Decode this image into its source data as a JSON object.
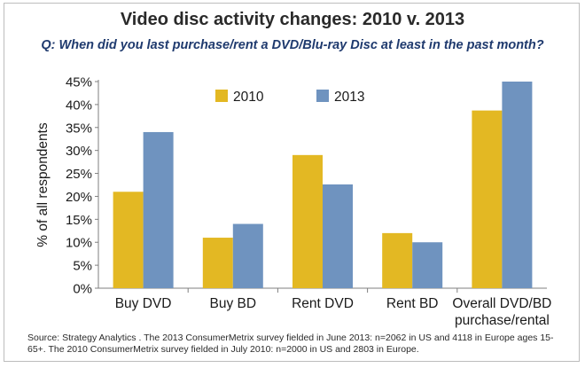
{
  "title": "Video disc activity changes: 2010 v. 2013",
  "subtitle": "Q: When did you last purchase/rent a DVD/Blu-ray Disc at least in the past month?",
  "source": "Source: Strategy Analytics . The 2013 ConsumerMetrix survey fielded in June 2013: n=2062 in US and 4118 in Europe ages 15-65+. The 2010 ConsumerMetrix survey fielded in July 2010: n=2000 in US and 2803 in Europe.",
  "colors": {
    "series_2010": "#e3b823",
    "series_2013": "#6f93bf",
    "axis": "#7f7f7f",
    "text": "#1a1a1a"
  },
  "chart_data": {
    "type": "bar",
    "categories": [
      [
        "Buy DVD"
      ],
      [
        "Buy BD"
      ],
      [
        "Rent DVD"
      ],
      [
        "Rent BD"
      ],
      [
        "Overall DVD/BD",
        "purchase/rental"
      ]
    ],
    "series": [
      {
        "name": "2010",
        "values": [
          21,
          11,
          29,
          12,
          38.7
        ]
      },
      {
        "name": "2013",
        "values": [
          34,
          14,
          22.6,
          10,
          45
        ]
      }
    ],
    "ylabel": "% of all respondents",
    "ylim": [
      0,
      45
    ],
    "yticks": [
      "0%",
      "5%",
      "10%",
      "15%",
      "20%",
      "25%",
      "30%",
      "35%",
      "40%",
      "45%"
    ],
    "grid": false,
    "legend_position": "top"
  }
}
